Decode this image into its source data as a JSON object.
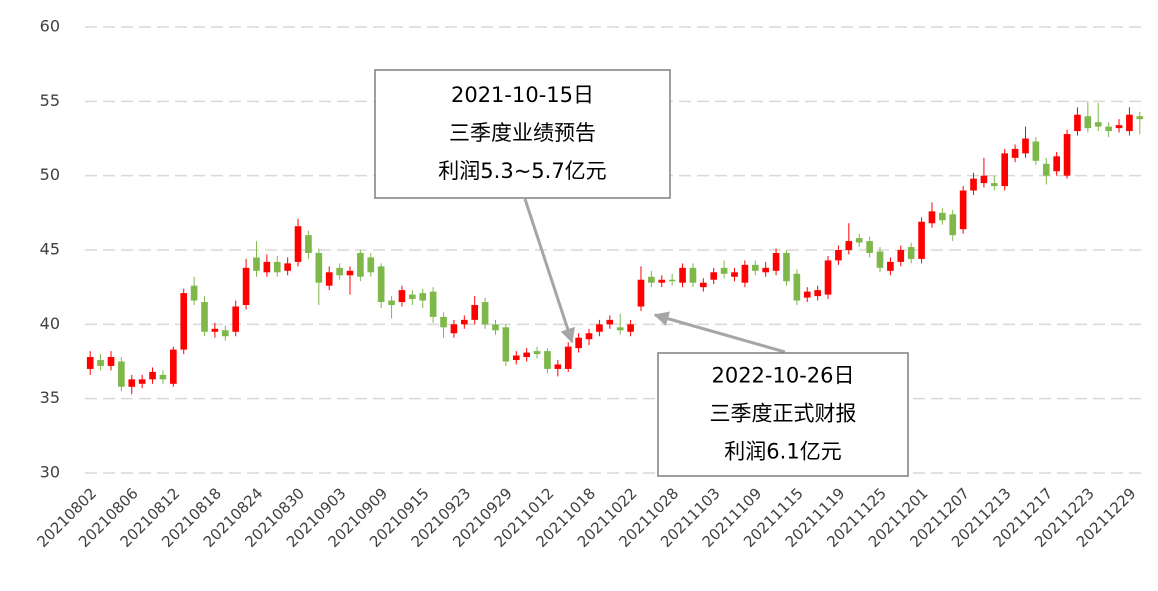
{
  "chart_data": {
    "type": "candlestick",
    "categories": [
      "20210802",
      null,
      null,
      null,
      "20210806",
      null,
      null,
      null,
      "20210812",
      null,
      null,
      null,
      "20210818",
      null,
      null,
      null,
      "20210824",
      null,
      null,
      null,
      "20210830",
      null,
      null,
      null,
      "20210903",
      null,
      null,
      null,
      "20210909",
      null,
      null,
      null,
      "20210915",
      null,
      null,
      null,
      "20210923",
      null,
      null,
      null,
      "20210929",
      null,
      null,
      null,
      "20211012",
      null,
      null,
      null,
      "20211018",
      null,
      null,
      null,
      "20211022",
      null,
      null,
      null,
      "20211028",
      null,
      null,
      null,
      "20211103",
      null,
      null,
      null,
      "20211109",
      null,
      null,
      null,
      "20211115",
      null,
      null,
      null,
      "20211119",
      null,
      null,
      null,
      "20211125",
      null,
      null,
      null,
      "20211201",
      null,
      null,
      null,
      "20211207",
      null,
      null,
      null,
      "20211213",
      null,
      null,
      null,
      "20211217",
      null,
      null,
      null,
      "20211223",
      null,
      null,
      null,
      "20211229",
      null
    ],
    "open": [
      37.0,
      37.6,
      37.2,
      37.5,
      35.8,
      36.0,
      36.3,
      36.6,
      36.0,
      38.3,
      42.6,
      41.5,
      39.5,
      39.6,
      39.5,
      41.3,
      44.5,
      43.5,
      44.2,
      43.6,
      44.2,
      46.0,
      44.8,
      42.6,
      43.8,
      43.3,
      44.8,
      44.5,
      43.9,
      41.6,
      41.5,
      42.0,
      42.1,
      42.2,
      40.5,
      39.4,
      40.0,
      40.3,
      41.5,
      40.0,
      39.8,
      37.6,
      37.8,
      38.2,
      38.2,
      37.0,
      37.0,
      38.4,
      39.0,
      39.5,
      40.0,
      39.8,
      39.5,
      41.2,
      43.2,
      42.8,
      43.0,
      42.8,
      43.8,
      42.5,
      43.0,
      43.8,
      43.2,
      42.8,
      44.0,
      43.5,
      43.6,
      44.8,
      43.4,
      41.8,
      41.9,
      42.0,
      44.3,
      45.0,
      45.8,
      45.6,
      44.9,
      43.6,
      44.2,
      45.2,
      44.4,
      46.8,
      47.5,
      47.4,
      46.4,
      49.0,
      49.5,
      49.5,
      49.3,
      51.2,
      51.5,
      52.3,
      50.8,
      50.3,
      50.0,
      53.0,
      54.0,
      53.6,
      53.3,
      53.2,
      53.0,
      54.0
    ],
    "high": [
      38.2,
      38.0,
      38.2,
      37.8,
      36.6,
      36.6,
      37.1,
      36.9,
      38.5,
      42.4,
      43.2,
      41.9,
      40.1,
      39.9,
      41.6,
      44.4,
      45.6,
      44.7,
      44.6,
      44.5,
      47.1,
      46.3,
      45.1,
      43.9,
      44.1,
      43.9,
      45.0,
      44.8,
      44.1,
      41.9,
      42.6,
      42.3,
      42.4,
      42.5,
      40.8,
      40.3,
      40.6,
      41.9,
      41.8,
      40.3,
      40.0,
      38.2,
      38.4,
      38.5,
      38.4,
      37.6,
      38.8,
      39.4,
      39.7,
      40.3,
      40.6,
      40.7,
      40.3,
      43.9,
      43.6,
      43.3,
      43.4,
      44.1,
      44.1,
      43.1,
      43.8,
      44.3,
      43.8,
      44.3,
      44.3,
      44.2,
      45.1,
      45.0,
      43.7,
      42.5,
      42.6,
      44.6,
      45.3,
      46.8,
      46.1,
      45.9,
      45.2,
      44.5,
      45.3,
      45.5,
      47.2,
      48.2,
      47.8,
      47.7,
      49.3,
      50.2,
      51.2,
      50.0,
      51.8,
      52.1,
      53.3,
      52.6,
      51.2,
      51.6,
      53.1,
      54.6,
      55.0,
      54.9,
      53.6,
      53.8,
      54.6,
      54.3
    ],
    "low": [
      36.6,
      36.9,
      36.9,
      35.5,
      35.3,
      35.7,
      36.0,
      36.0,
      35.8,
      38.0,
      41.3,
      39.2,
      39.1,
      38.9,
      39.2,
      41.0,
      43.2,
      43.2,
      43.2,
      43.3,
      43.9,
      44.4,
      41.3,
      42.3,
      43.0,
      42.0,
      42.9,
      43.2,
      41.1,
      40.4,
      41.2,
      41.3,
      41.1,
      40.1,
      39.1,
      39.1,
      39.7,
      40.0,
      39.7,
      39.3,
      37.2,
      37.3,
      37.5,
      37.7,
      36.7,
      36.5,
      36.8,
      38.1,
      38.6,
      39.2,
      39.7,
      39.3,
      39.2,
      40.9,
      42.5,
      42.5,
      42.6,
      42.5,
      42.5,
      42.2,
      42.7,
      43.1,
      42.9,
      42.5,
      43.3,
      43.2,
      43.3,
      42.6,
      41.3,
      41.5,
      41.6,
      41.7,
      44.0,
      44.7,
      45.2,
      44.5,
      43.5,
      43.3,
      43.9,
      44.1,
      44.1,
      46.5,
      46.7,
      45.6,
      46.1,
      48.7,
      49.2,
      49.0,
      49.0,
      50.9,
      51.2,
      50.7,
      49.4,
      50.0,
      49.8,
      52.7,
      52.9,
      53.0,
      52.6,
      52.9,
      52.7,
      52.8
    ],
    "close": [
      37.8,
      37.2,
      37.8,
      35.8,
      36.3,
      36.3,
      36.8,
      36.3,
      38.3,
      42.1,
      41.6,
      39.5,
      39.7,
      39.2,
      41.2,
      43.8,
      43.6,
      44.2,
      43.5,
      44.1,
      46.6,
      44.8,
      42.8,
      43.5,
      43.3,
      43.6,
      43.2,
      43.5,
      41.5,
      41.3,
      42.3,
      41.7,
      41.6,
      40.5,
      39.8,
      40.0,
      40.3,
      41.3,
      40.0,
      39.6,
      37.5,
      37.9,
      38.1,
      38.0,
      37.0,
      37.3,
      38.5,
      39.1,
      39.4,
      40.0,
      40.3,
      39.6,
      40.0,
      43.0,
      42.8,
      43.0,
      42.9,
      43.8,
      42.8,
      42.8,
      43.5,
      43.4,
      43.5,
      44.0,
      43.6,
      43.8,
      44.8,
      42.9,
      41.6,
      42.2,
      42.3,
      44.3,
      45.0,
      45.6,
      45.5,
      44.8,
      43.8,
      44.2,
      45.0,
      44.4,
      46.9,
      47.6,
      47.0,
      46.0,
      49.0,
      49.8,
      50.0,
      49.3,
      51.5,
      51.8,
      52.5,
      51.0,
      50.0,
      51.3,
      52.8,
      54.1,
      53.2,
      53.3,
      53.0,
      53.4,
      54.1,
      53.8
    ],
    "up_color": "#ff0000",
    "down_color": "#7fb84a",
    "ylim": [
      30,
      60
    ],
    "yticks": [
      30,
      35,
      40,
      45,
      50,
      55,
      60
    ],
    "grid": true,
    "annotations": [
      {
        "lines": [
          "2021-10-15日",
          "三季度业绩预告",
          "利润5.3~5.7亿元"
        ]
      },
      {
        "lines": [
          "2022-10-26日",
          "三季度正式财报",
          "利润6.1亿元"
        ]
      }
    ]
  }
}
